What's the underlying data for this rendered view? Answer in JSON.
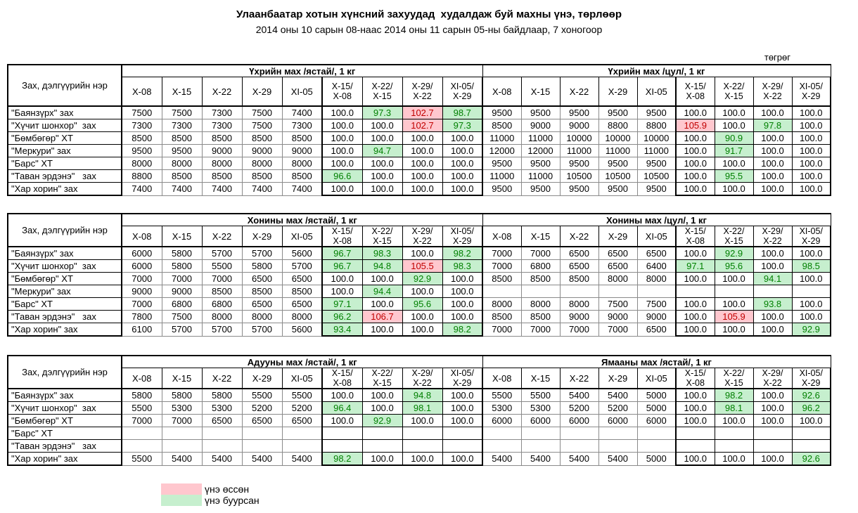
{
  "title": "Улаанбаатар хотын хүнсний захуудад  худалдаж буй махны үнэ, төрлөөр",
  "subtitle": "2014 оны 10 сарын 08-наас 2014 оны 11 сарын 05-ны байдлаар, 7 хоногоор",
  "currency_label": "төгрөг",
  "labels": {
    "name_column": "Зах, дэлгүүрийн нэр",
    "date_columns": [
      "X-08",
      "X-15",
      "X-22",
      "X-29",
      "XI-05"
    ],
    "ratio_columns": [
      "X-15/\nX-08",
      "X-22/\nX-15",
      "X-29/\nX-22",
      "XI-05/\nX-29"
    ]
  },
  "colors": {
    "increase_bg": "#FFC7CE",
    "increase_text": "#C00000",
    "decrease_bg": "#C6EFCE",
    "decrease_text": "#008000"
  },
  "legend": {
    "items": [
      {
        "label": "үнэ өссөн",
        "state": "up"
      },
      {
        "label": "үнэ буурсан",
        "state": "down"
      }
    ]
  },
  "tables": [
    {
      "left_group": "Үхрийн мах /ястай/, 1 кг",
      "right_group": "Үхрийн мах /цул/, 1 кг",
      "rows": [
        {
          "name": "\"Баянзүрх\" зах",
          "left": {
            "prices": [
              "7500",
              "7500",
              "7300",
              "7500",
              "7400"
            ],
            "ratios": [
              "100.0",
              "97.3",
              "102.7",
              "98.7"
            ],
            "states": [
              "",
              "down",
              "up",
              "down"
            ]
          },
          "right": {
            "prices": [
              "9500",
              "9500",
              "9500",
              "9500",
              "9500"
            ],
            "ratios": [
              "100.0",
              "100.0",
              "100.0",
              "100.0"
            ],
            "states": [
              "",
              "",
              "",
              ""
            ]
          }
        },
        {
          "name": "\"Хүчит шонхор\"  зах",
          "left": {
            "prices": [
              "7300",
              "7300",
              "7300",
              "7500",
              "7300"
            ],
            "ratios": [
              "100.0",
              "100.0",
              "102.7",
              "97.3"
            ],
            "states": [
              "",
              "",
              "up",
              "down"
            ]
          },
          "right": {
            "prices": [
              "8500",
              "9000",
              "9000",
              "8800",
              "8800"
            ],
            "ratios": [
              "105.9",
              "100.0",
              "97.8",
              "100.0"
            ],
            "states": [
              "up",
              "",
              "down",
              ""
            ]
          }
        },
        {
          "name": "\"Бөмбөгөр\" ХТ",
          "left": {
            "prices": [
              "8500",
              "8500",
              "8500",
              "8500",
              "8500"
            ],
            "ratios": [
              "100.0",
              "100.0",
              "100.0",
              "100.0"
            ],
            "states": [
              "",
              "",
              "",
              ""
            ]
          },
          "right": {
            "prices": [
              "11000",
              "11000",
              "10000",
              "10000",
              "10000"
            ],
            "ratios": [
              "100.0",
              "90.9",
              "100.0",
              "100.0"
            ],
            "states": [
              "",
              "down",
              "",
              ""
            ]
          }
        },
        {
          "name": "\"Меркури\" зах",
          "left": {
            "prices": [
              "9500",
              "9500",
              "9000",
              "9000",
              "9000"
            ],
            "ratios": [
              "100.0",
              "94.7",
              "100.0",
              "100.0"
            ],
            "states": [
              "",
              "down",
              "",
              ""
            ]
          },
          "right": {
            "prices": [
              "12000",
              "12000",
              "11000",
              "11000",
              "11000"
            ],
            "ratios": [
              "100.0",
              "91.7",
              "100.0",
              "100.0"
            ],
            "states": [
              "",
              "down",
              "",
              ""
            ]
          }
        },
        {
          "name": "\"Барс\" ХТ",
          "left": {
            "prices": [
              "8000",
              "8000",
              "8000",
              "8000",
              "8000"
            ],
            "ratios": [
              "100.0",
              "100.0",
              "100.0",
              "100.0"
            ],
            "states": [
              "",
              "",
              "",
              ""
            ]
          },
          "right": {
            "prices": [
              "9500",
              "9500",
              "9500",
              "9500",
              "9500"
            ],
            "ratios": [
              "100.0",
              "100.0",
              "100.0",
              "100.0"
            ],
            "states": [
              "",
              "",
              "",
              ""
            ]
          }
        },
        {
          "name": "\"Таван эрдэнэ\"   зах",
          "left": {
            "prices": [
              "8800",
              "8500",
              "8500",
              "8500",
              "8500"
            ],
            "ratios": [
              "96.6",
              "100.0",
              "100.0",
              "100.0"
            ],
            "states": [
              "down",
              "",
              "",
              ""
            ]
          },
          "right": {
            "prices": [
              "11000",
              "11000",
              "10500",
              "10500",
              "10500"
            ],
            "ratios": [
              "100.0",
              "95.5",
              "100.0",
              "100.0"
            ],
            "states": [
              "",
              "down",
              "",
              ""
            ]
          }
        },
        {
          "name": "\"Хар хорин\" зах",
          "left": {
            "prices": [
              "7400",
              "7400",
              "7400",
              "7400",
              "7400"
            ],
            "ratios": [
              "100.0",
              "100.0",
              "100.0",
              "100.0"
            ],
            "states": [
              "",
              "",
              "",
              ""
            ]
          },
          "right": {
            "prices": [
              "9500",
              "9500",
              "9500",
              "9500",
              "9500"
            ],
            "ratios": [
              "100.0",
              "100.0",
              "100.0",
              "100.0"
            ],
            "states": [
              "",
              "",
              "",
              ""
            ]
          }
        }
      ]
    },
    {
      "left_group": "Хонины мах /ястай/, 1 кг",
      "right_group": "Хонины мах /цул/, 1 кг",
      "rows": [
        {
          "name": "\"Баянзүрх\" зах",
          "left": {
            "prices": [
              "6000",
              "5800",
              "5700",
              "5700",
              "5600"
            ],
            "ratios": [
              "96.7",
              "98.3",
              "100.0",
              "98.2"
            ],
            "states": [
              "down",
              "down",
              "",
              "down"
            ]
          },
          "right": {
            "prices": [
              "7000",
              "7000",
              "6500",
              "6500",
              "6500"
            ],
            "ratios": [
              "100.0",
              "92.9",
              "100.0",
              "100.0"
            ],
            "states": [
              "",
              "down",
              "",
              ""
            ]
          }
        },
        {
          "name": "\"Хүчит шонхор\"  зах",
          "left": {
            "prices": [
              "6000",
              "5800",
              "5500",
              "5800",
              "5700"
            ],
            "ratios": [
              "96.7",
              "94.8",
              "105.5",
              "98.3"
            ],
            "states": [
              "down",
              "down",
              "up",
              "down"
            ]
          },
          "right": {
            "prices": [
              "7000",
              "6800",
              "6500",
              "6500",
              "6400"
            ],
            "ratios": [
              "97.1",
              "95.6",
              "100.0",
              "98.5"
            ],
            "states": [
              "down",
              "down",
              "",
              "down"
            ]
          }
        },
        {
          "name": "\"Бөмбөгөр\" ХТ",
          "left": {
            "prices": [
              "7000",
              "7000",
              "7000",
              "6500",
              "6500"
            ],
            "ratios": [
              "100.0",
              "100.0",
              "92.9",
              "100.0"
            ],
            "states": [
              "",
              "",
              "down",
              ""
            ]
          },
          "right": {
            "prices": [
              "8500",
              "8500",
              "8500",
              "8000",
              "8000"
            ],
            "ratios": [
              "100.0",
              "100.0",
              "94.1",
              "100.0"
            ],
            "states": [
              "",
              "",
              "down",
              ""
            ]
          }
        },
        {
          "name": "\"Меркури\" зах",
          "left": {
            "prices": [
              "9000",
              "9000",
              "8500",
              "8500",
              "8500"
            ],
            "ratios": [
              "100.0",
              "94.4",
              "100.0",
              "100.0"
            ],
            "states": [
              "",
              "down",
              "",
              ""
            ]
          },
          "right": {
            "prices": [
              "",
              "",
              "",
              "",
              ""
            ],
            "ratios": [
              "",
              "",
              "",
              ""
            ],
            "states": [
              "",
              "",
              "",
              ""
            ]
          }
        },
        {
          "name": "\"Барс\" ХТ",
          "left": {
            "prices": [
              "7000",
              "6800",
              "6800",
              "6500",
              "6500"
            ],
            "ratios": [
              "97.1",
              "100.0",
              "95.6",
              "100.0"
            ],
            "states": [
              "down",
              "",
              "down",
              ""
            ]
          },
          "right": {
            "prices": [
              "8000",
              "8000",
              "8000",
              "7500",
              "7500"
            ],
            "ratios": [
              "100.0",
              "100.0",
              "93.8",
              "100.0"
            ],
            "states": [
              "",
              "",
              "down",
              ""
            ]
          }
        },
        {
          "name": "\"Таван эрдэнэ\"   зах",
          "left": {
            "prices": [
              "7800",
              "7500",
              "8000",
              "8000",
              "8000"
            ],
            "ratios": [
              "96.2",
              "106.7",
              "100.0",
              "100.0"
            ],
            "states": [
              "down",
              "up",
              "",
              ""
            ]
          },
          "right": {
            "prices": [
              "8500",
              "8500",
              "9000",
              "9000",
              "9000"
            ],
            "ratios": [
              "100.0",
              "105.9",
              "100.0",
              "100.0"
            ],
            "states": [
              "",
              "up",
              "",
              ""
            ]
          }
        },
        {
          "name": "\"Хар хорин\" зах",
          "left": {
            "prices": [
              "6100",
              "5700",
              "5700",
              "5700",
              "5600"
            ],
            "ratios": [
              "93.4",
              "100.0",
              "100.0",
              "98.2"
            ],
            "states": [
              "down",
              "",
              "",
              "down"
            ]
          },
          "right": {
            "prices": [
              "7000",
              "7000",
              "7000",
              "7000",
              "6500"
            ],
            "ratios": [
              "100.0",
              "100.0",
              "100.0",
              "92.9"
            ],
            "states": [
              "",
              "",
              "",
              "down"
            ]
          }
        }
      ]
    },
    {
      "left_group": "Адууны мах /ястай/, 1 кг",
      "right_group": "Ямааны мах /ястай/, 1 кг",
      "rows": [
        {
          "name": "\"Баянзүрх\" зах",
          "left": {
            "prices": [
              "5800",
              "5800",
              "5800",
              "5500",
              "5500"
            ],
            "ratios": [
              "100.0",
              "100.0",
              "94.8",
              "100.0"
            ],
            "states": [
              "",
              "",
              "down",
              ""
            ]
          },
          "right": {
            "prices": [
              "5500",
              "5500",
              "5400",
              "5400",
              "5000"
            ],
            "ratios": [
              "100.0",
              "98.2",
              "100.0",
              "92.6"
            ],
            "states": [
              "",
              "down",
              "",
              "down"
            ]
          }
        },
        {
          "name": "\"Хүчит шонхор\"  зах",
          "left": {
            "prices": [
              "5500",
              "5300",
              "5300",
              "5200",
              "5200"
            ],
            "ratios": [
              "96.4",
              "100.0",
              "98.1",
              "100.0"
            ],
            "states": [
              "down",
              "",
              "down",
              ""
            ]
          },
          "right": {
            "prices": [
              "5300",
              "5300",
              "5200",
              "5200",
              "5000"
            ],
            "ratios": [
              "100.0",
              "98.1",
              "100.0",
              "96.2"
            ],
            "states": [
              "",
              "down",
              "",
              "down"
            ]
          }
        },
        {
          "name": "\"Бөмбөгөр\" ХТ",
          "left": {
            "prices": [
              "7000",
              "7000",
              "6500",
              "6500",
              "6500"
            ],
            "ratios": [
              "100.0",
              "92.9",
              "100.0",
              "100.0"
            ],
            "states": [
              "",
              "down",
              "",
              ""
            ]
          },
          "right": {
            "prices": [
              "6000",
              "6000",
              "6000",
              "6000",
              "6000"
            ],
            "ratios": [
              "100.0",
              "100.0",
              "100.0",
              "100.0"
            ],
            "states": [
              "",
              "",
              "",
              ""
            ]
          }
        },
        {
          "name": "\"Барс\" ХТ",
          "left": {
            "prices": [
              "",
              "",
              "",
              "",
              ""
            ],
            "ratios": [
              "",
              "",
              "",
              ""
            ],
            "states": [
              "",
              "",
              "",
              ""
            ]
          },
          "right": {
            "prices": [
              "",
              "",
              "",
              "",
              ""
            ],
            "ratios": [
              "",
              "",
              "",
              ""
            ],
            "states": [
              "",
              "",
              "",
              ""
            ]
          }
        },
        {
          "name": "\"Таван эрдэнэ\"   зах",
          "left": {
            "prices": [
              "",
              "",
              "",
              "",
              ""
            ],
            "ratios": [
              "",
              "",
              "",
              ""
            ],
            "states": [
              "",
              "",
              "",
              ""
            ]
          },
          "right": {
            "prices": [
              "",
              "",
              "",
              "",
              ""
            ],
            "ratios": [
              "",
              "",
              "",
              ""
            ],
            "states": [
              "",
              "",
              "",
              ""
            ]
          }
        },
        {
          "name": "\"Хар хорин\" зах",
          "left": {
            "prices": [
              "5500",
              "5400",
              "5400",
              "5400",
              "5400"
            ],
            "ratios": [
              "98.2",
              "100.0",
              "100.0",
              "100.0"
            ],
            "states": [
              "down",
              "",
              "",
              ""
            ]
          },
          "right": {
            "prices": [
              "5400",
              "5400",
              "5400",
              "5400",
              "5000"
            ],
            "ratios": [
              "100.0",
              "100.0",
              "100.0",
              "92.6"
            ],
            "states": [
              "",
              "",
              "",
              "down"
            ]
          }
        }
      ]
    }
  ]
}
